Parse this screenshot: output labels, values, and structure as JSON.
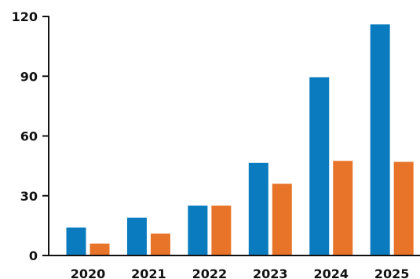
{
  "chart_data": {
    "type": "bar",
    "title": "",
    "xlabel": "",
    "ylabel": "",
    "categories": [
      "2020",
      "2021",
      "2022",
      "2023",
      "2024",
      "2025"
    ],
    "series": [
      {
        "values": [
          14,
          19,
          25,
          46.5,
          89.5,
          116
        ],
        "color": "#0a7bbf"
      },
      {
        "values": [
          6,
          11,
          25,
          36,
          47.5,
          47
        ],
        "color": "#e8742a"
      }
    ],
    "ylim": [
      0,
      120
    ],
    "yticks": [
      "0",
      "30",
      "60",
      "90",
      "120"
    ],
    "grid": false,
    "legend": "none"
  }
}
